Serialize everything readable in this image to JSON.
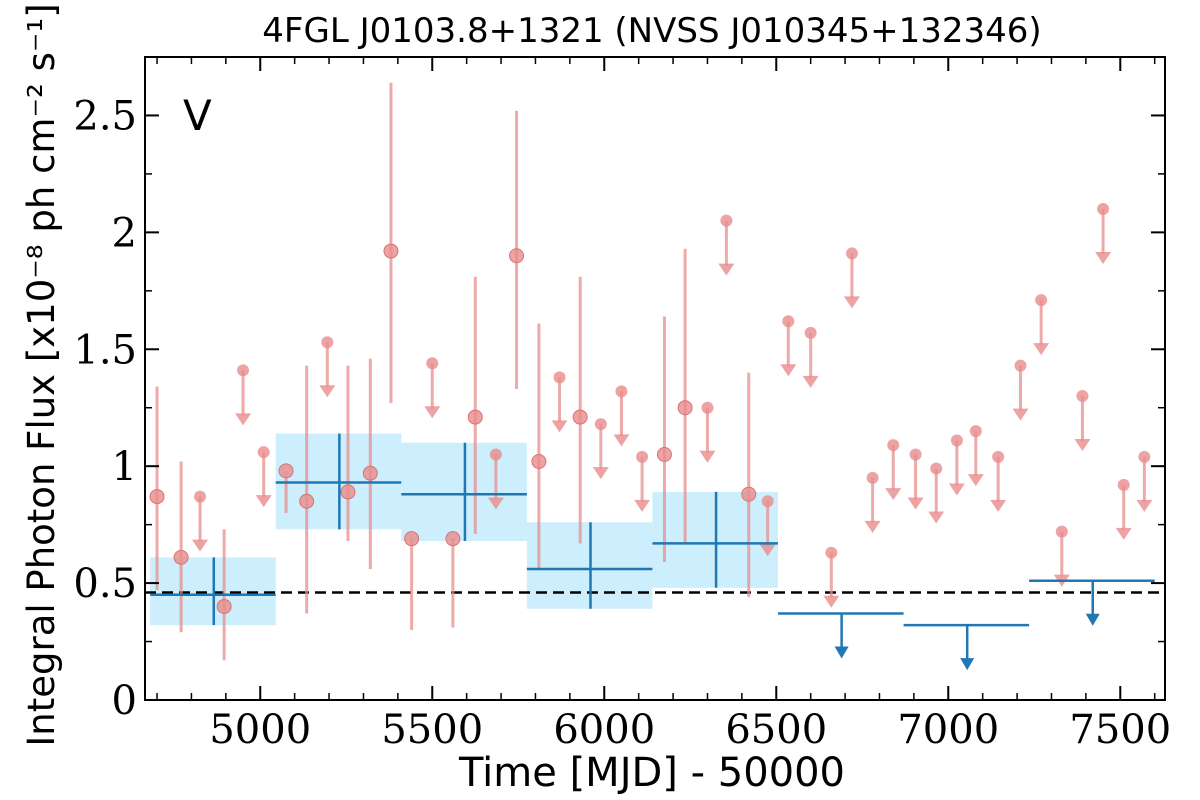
{
  "chart_data": {
    "type": "scatter",
    "title": "4FGL J0103.8+1321 (NVSS J010345+132346)",
    "xlabel": "Time [MJD] - 50000",
    "ylabel": "Integral Photon Flux [x10⁻⁸ ph cm⁻² s⁻¹]",
    "band_label": "V",
    "xlim": [
      4665,
      7630
    ],
    "ylim": [
      0,
      2.75
    ],
    "x_ticks": [
      "5000",
      "5500",
      "6000",
      "6500",
      "7000",
      "7500"
    ],
    "y_ticks": [
      "0",
      "0.5",
      "1",
      "1.5",
      "2",
      "2.5"
    ],
    "reference_level": 0.46,
    "colors": {
      "short_bins": "#e88c8c",
      "long_bins": "#1f77b4",
      "long_bins_band": "#cdeefc",
      "reference_line": "#000000"
    },
    "series": [
      {
        "kind": "short-bin detections",
        "points": [
          {
            "x": 4700,
            "y": 0.87,
            "ylo": 0.47,
            "yhi": 1.34
          },
          {
            "x": 4770,
            "y": 0.61,
            "ylo": 0.29,
            "yhi": 1.02
          },
          {
            "x": 4895,
            "y": 0.4,
            "ylo": 0.17,
            "yhi": 0.73
          },
          {
            "x": 5075,
            "y": 0.98,
            "ylo": 0.8,
            "yhi": 0.98
          },
          {
            "x": 5135,
            "y": 0.85,
            "ylo": 0.37,
            "yhi": 1.43
          },
          {
            "x": 5255,
            "y": 0.89,
            "ylo": 0.68,
            "yhi": 1.43
          },
          {
            "x": 5320,
            "y": 0.97,
            "ylo": 0.56,
            "yhi": 1.46
          },
          {
            "x": 5380,
            "y": 1.92,
            "ylo": 1.27,
            "yhi": 2.64
          },
          {
            "x": 5440,
            "y": 0.69,
            "ylo": 0.3,
            "yhi": 0.69
          },
          {
            "x": 5560,
            "y": 0.69,
            "ylo": 0.31,
            "yhi": 0.69
          },
          {
            "x": 5625,
            "y": 1.21,
            "ylo": 0.71,
            "yhi": 1.81
          },
          {
            "x": 5745,
            "y": 1.9,
            "ylo": 1.33,
            "yhi": 2.52
          },
          {
            "x": 5810,
            "y": 1.02,
            "ylo": 0.56,
            "yhi": 1.61
          },
          {
            "x": 5930,
            "y": 1.21,
            "ylo": 0.67,
            "yhi": 1.81
          },
          {
            "x": 6175,
            "y": 1.05,
            "ylo": 0.59,
            "yhi": 1.64
          },
          {
            "x": 6235,
            "y": 1.25,
            "ylo": 0.67,
            "yhi": 1.93
          },
          {
            "x": 6420,
            "y": 0.88,
            "ylo": 0.44,
            "yhi": 1.4
          }
        ]
      },
      {
        "kind": "short-bin upper limits",
        "points": [
          {
            "x": 4825,
            "y": 0.87
          },
          {
            "x": 4950,
            "y": 1.41
          },
          {
            "x": 5010,
            "y": 1.06
          },
          {
            "x": 5195,
            "y": 1.53
          },
          {
            "x": 5500,
            "y": 1.44
          },
          {
            "x": 5685,
            "y": 1.05
          },
          {
            "x": 5870,
            "y": 1.38
          },
          {
            "x": 5990,
            "y": 1.18
          },
          {
            "x": 6050,
            "y": 1.32
          },
          {
            "x": 6110,
            "y": 1.04
          },
          {
            "x": 6300,
            "y": 1.25
          },
          {
            "x": 6355,
            "y": 2.05
          },
          {
            "x": 6475,
            "y": 0.85
          },
          {
            "x": 6535,
            "y": 1.62
          },
          {
            "x": 6600,
            "y": 1.57
          },
          {
            "x": 6660,
            "y": 0.63
          },
          {
            "x": 6720,
            "y": 1.91
          },
          {
            "x": 6780,
            "y": 0.95
          },
          {
            "x": 6840,
            "y": 1.09
          },
          {
            "x": 6905,
            "y": 1.05
          },
          {
            "x": 6965,
            "y": 0.99
          },
          {
            "x": 7025,
            "y": 1.11
          },
          {
            "x": 7080,
            "y": 1.15
          },
          {
            "x": 7145,
            "y": 1.04
          },
          {
            "x": 7210,
            "y": 1.43
          },
          {
            "x": 7270,
            "y": 1.71
          },
          {
            "x": 7330,
            "y": 0.72
          },
          {
            "x": 7390,
            "y": 1.3
          },
          {
            "x": 7450,
            "y": 2.1
          },
          {
            "x": 7510,
            "y": 0.92
          },
          {
            "x": 7570,
            "y": 1.04
          }
        ]
      },
      {
        "kind": "long-bin detections",
        "points": [
          {
            "x": 4865,
            "xlo": 4680,
            "xhi": 5045,
            "y": 0.45,
            "ylo": 0.32,
            "yhi": 0.61
          },
          {
            "x": 5230,
            "xlo": 5045,
            "xhi": 5410,
            "y": 0.93,
            "ylo": 0.73,
            "yhi": 1.14
          },
          {
            "x": 5595,
            "xlo": 5410,
            "xhi": 5775,
            "y": 0.88,
            "ylo": 0.68,
            "yhi": 1.1
          },
          {
            "x": 5960,
            "xlo": 5775,
            "xhi": 6140,
            "y": 0.56,
            "ylo": 0.39,
            "yhi": 0.76
          },
          {
            "x": 6325,
            "xlo": 6140,
            "xhi": 6505,
            "y": 0.67,
            "ylo": 0.48,
            "yhi": 0.89
          }
        ]
      },
      {
        "kind": "long-bin upper limits",
        "points": [
          {
            "x": 6690,
            "xlo": 6505,
            "xhi": 6870,
            "y": 0.37
          },
          {
            "x": 7055,
            "xlo": 6870,
            "xhi": 7235,
            "y": 0.32
          },
          {
            "x": 7420,
            "xlo": 7235,
            "xhi": 7600,
            "y": 0.51
          }
        ]
      }
    ]
  }
}
